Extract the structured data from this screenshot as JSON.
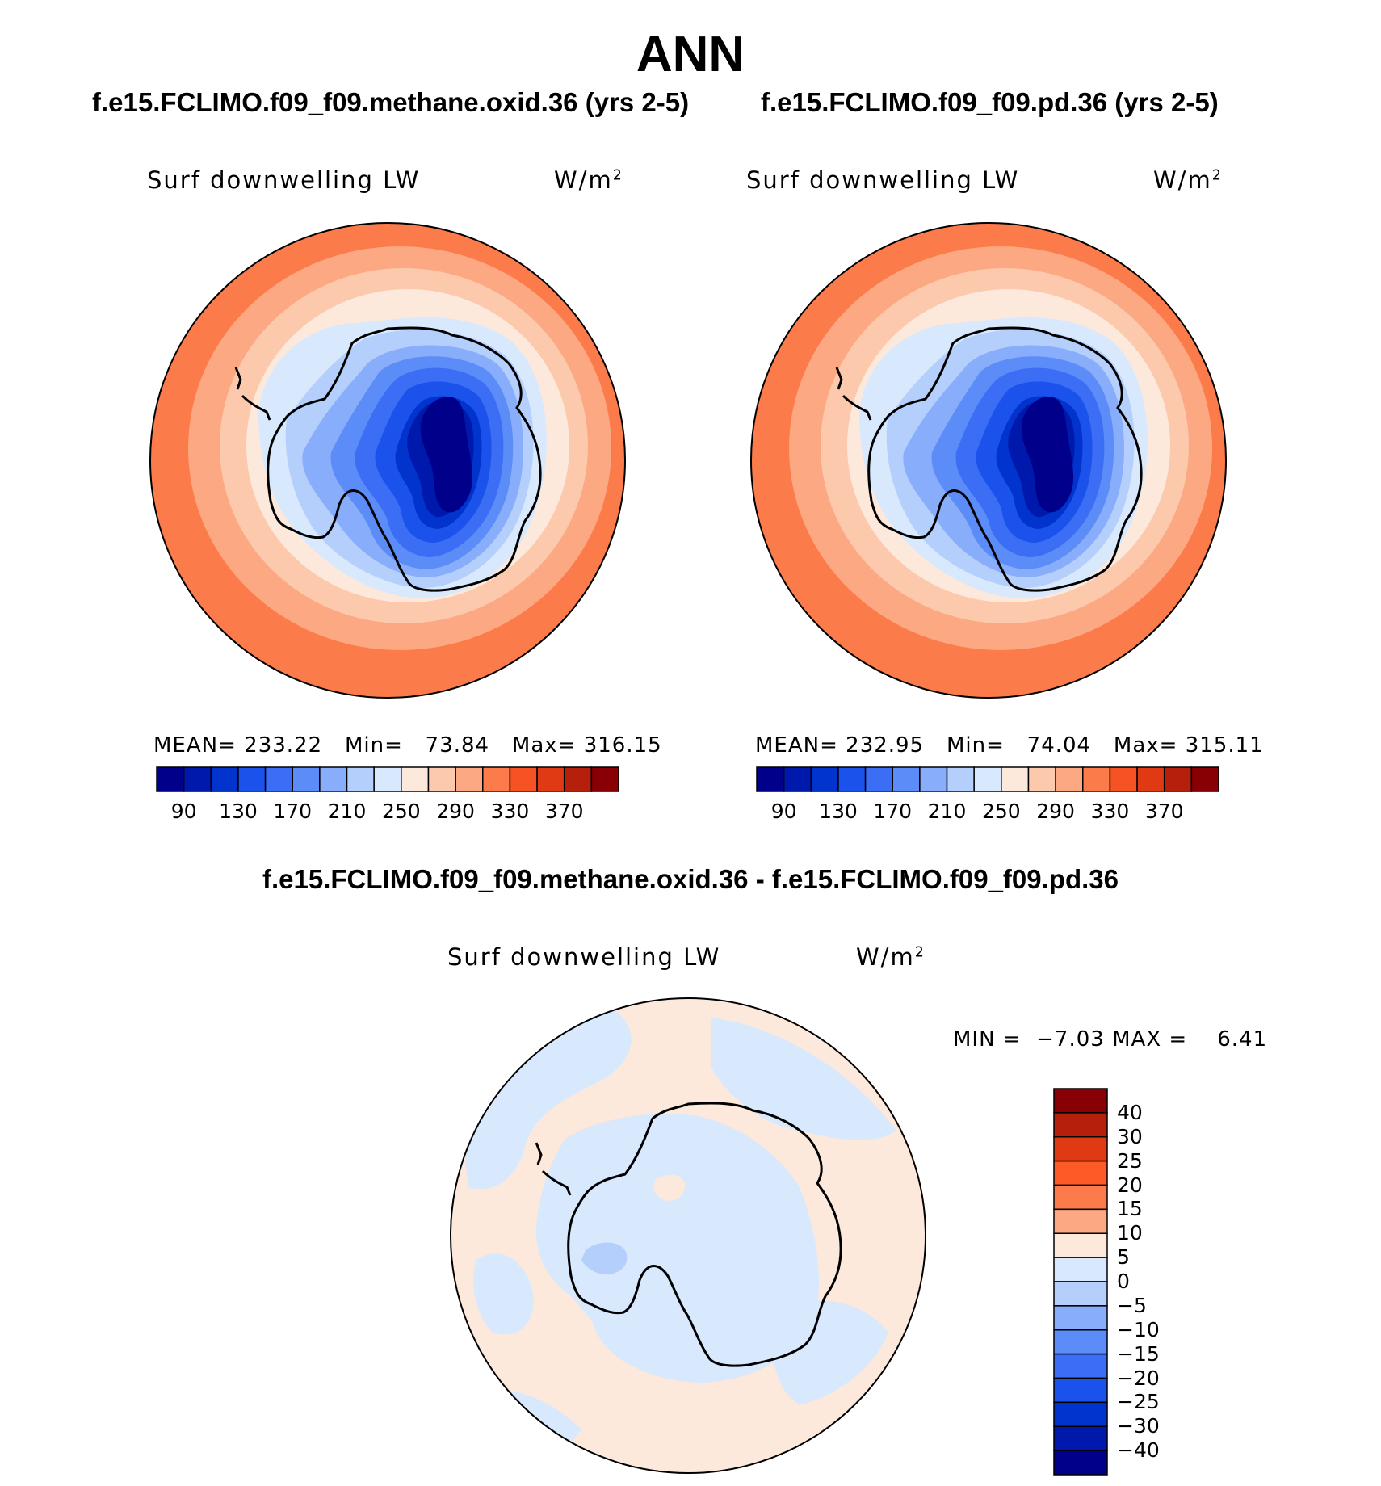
{
  "figure": {
    "season": "ANN",
    "panels": [
      {
        "case_title": "f.e15.FCLIMO.f09_f09.methane.oxid.36 (yrs 2-5)",
        "field": "Surf  downwelling LW",
        "units_base": "W/m",
        "units_exp": "2",
        "mean_label": "MEAN=",
        "mean": "233.22",
        "min_label": "Min=",
        "min": "73.84",
        "max_label": "Max=",
        "max": "316.15"
      },
      {
        "case_title": "f.e15.FCLIMO.f09_f09.pd.36 (yrs 2-5)",
        "field": "Surf  downwelling LW",
        "units_base": "W/m",
        "units_exp": "2",
        "mean_label": "MEAN=",
        "mean": "232.95",
        "min_label": "Min=",
        "min": "74.04",
        "max_label": "Max=",
        "max": "315.11"
      }
    ],
    "diff_panel": {
      "title": "f.e15.FCLIMO.f09_f09.methane.oxid.36 - f.e15.FCLIMO.f09_f09.pd.36",
      "field": "Surf  downwelling LW",
      "units_base": "W/m",
      "units_exp": "2",
      "min_label": "MIN =",
      "min": "−7.03",
      "max_label": "MAX =",
      "max": "6.41"
    }
  },
  "colorbars": {
    "main": {
      "colors": [
        "#00008a",
        "#0019ad",
        "#0034cc",
        "#1b52ec",
        "#3b6ef4",
        "#5b8cf8",
        "#88adfa",
        "#b5cffc",
        "#d8e8fd",
        "#fde9dc",
        "#fcc9ac",
        "#fca882",
        "#fc7b4b",
        "#f65325",
        "#df3a14",
        "#b5200c",
        "#880004"
      ],
      "ticks": [
        "90",
        "130",
        "170",
        "210",
        "250",
        "290",
        "330",
        "370"
      ]
    },
    "diff": {
      "colors": [
        "#880004",
        "#b5200c",
        "#df3a14",
        "#fc5a27",
        "#fc7b4b",
        "#fca882",
        "#fde9dc",
        "#d8e8fd",
        "#b5cffc",
        "#88adfa",
        "#5b8cf8",
        "#3b6ef4",
        "#1b52ec",
        "#0034cc",
        "#0019ad",
        "#00008a"
      ],
      "ticks": [
        "40",
        "30",
        "25",
        "20",
        "15",
        "10",
        "5",
        "0",
        "−5",
        "−10",
        "−15",
        "−20",
        "−25",
        "−30",
        "−40"
      ]
    }
  },
  "map_fill_colors": {
    "outer_ring": "#fc7b4b",
    "ring2": "#fca882",
    "ring3": "#fcc9ac",
    "ring4": "#fde9dc",
    "ocean_near": "#d8e8fd",
    "ice1": "#b5cffc",
    "ice2": "#88adfa",
    "ice3": "#5b8cf8",
    "ice4": "#3b6ef4",
    "ice5": "#1b52ec",
    "ice6": "#0034cc",
    "ice7": "#0019ad",
    "ice_core": "#00008a",
    "edge_hot": "#f65325",
    "diff_positive": "#fde9dc",
    "diff_negative": "#d8e8fd",
    "diff_neg10": "#b5cffc"
  }
}
